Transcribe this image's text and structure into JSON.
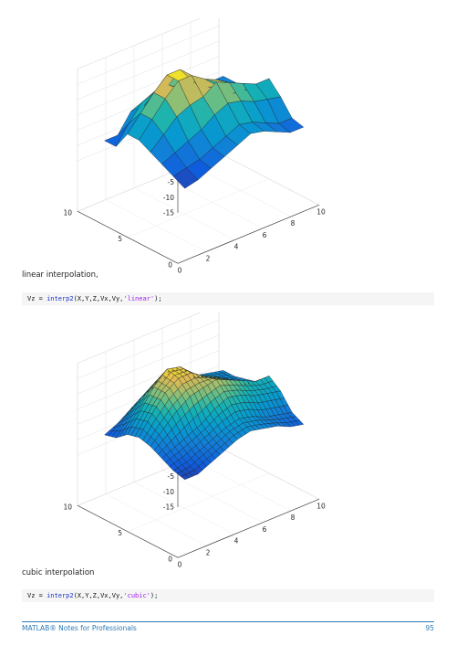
{
  "captions": {
    "linear": "linear interpolation,",
    "cubic": "cubic interpolation"
  },
  "code": {
    "linear": {
      "lhs": "Vz = ",
      "fn": "interp2",
      "args": "(X,Y,Z,Vx,Vy,",
      "str": "'linear'",
      "end": ");"
    },
    "cubic": {
      "lhs": "Vz = ",
      "fn": "interp2",
      "args": "(X,Y,Z,Vx,Vy,",
      "str": "'cubic'",
      "end": ");"
    }
  },
  "footer": {
    "title": "MATLAB® Notes for Professionals",
    "page": "95"
  },
  "chart_data": [
    {
      "type": "surface",
      "zlim": [
        -15,
        15
      ],
      "z_ticks": [
        "15",
        "10",
        "5",
        "0",
        "-5",
        "-10",
        "-15"
      ],
      "x_ticks": [
        "0",
        "2",
        "4",
        "6",
        "8",
        "10"
      ],
      "y_ticks": [
        "0",
        "5",
        "10"
      ],
      "grid": true,
      "grid_z": [
        [
          -9,
          -9,
          -3,
          -3,
          0,
          0,
          -2,
          -2,
          -4,
          -4
        ],
        [
          -9,
          -3,
          2,
          4,
          4,
          1,
          1,
          -2,
          -4,
          -4
        ],
        [
          -3,
          2,
          7,
          11,
          11,
          5,
          4,
          0,
          -4,
          -4
        ],
        [
          -3,
          2,
          7,
          11,
          11,
          8,
          6,
          3,
          -1,
          -1
        ],
        [
          -5,
          -1,
          3,
          5,
          6,
          9,
          7,
          5,
          3,
          3
        ],
        [
          -7,
          -5,
          -3,
          -1,
          2,
          4,
          3,
          1,
          0,
          -1
        ],
        [
          -9,
          -8,
          -7,
          -5,
          -3,
          -1,
          -2,
          -4,
          -6,
          -6
        ],
        [
          -11,
          -10,
          -8,
          -6,
          -4,
          -2,
          -3,
          -5,
          -7,
          -7
        ]
      ]
    },
    {
      "type": "surface",
      "zlim": [
        -15,
        15
      ],
      "z_ticks": [
        "15",
        "10",
        "5",
        "0",
        "-5",
        "-10",
        "-15"
      ],
      "x_ticks": [
        "0",
        "2",
        "4",
        "6",
        "8",
        "10"
      ],
      "y_ticks": [
        "0",
        "5",
        "10"
      ],
      "grid": true,
      "grid_z": [
        [
          -9,
          -7,
          -4,
          -2,
          0,
          0,
          -1,
          -2,
          -3,
          -4
        ],
        [
          -8,
          -3,
          2,
          5,
          5,
          2,
          1,
          -1,
          -3,
          -4
        ],
        [
          -5,
          1,
          7,
          11,
          10,
          5,
          3,
          0,
          -3,
          -3
        ],
        [
          -4,
          2,
          7,
          10,
          10,
          7,
          5,
          2,
          -1,
          -2
        ],
        [
          -5,
          -1,
          3,
          6,
          7,
          8,
          6,
          4,
          2,
          2
        ],
        [
          -7,
          -5,
          -3,
          -1,
          2,
          4,
          3,
          1,
          0,
          -1
        ],
        [
          -9,
          -8,
          -6,
          -4,
          -2,
          -1,
          -2,
          -4,
          -5,
          -6
        ],
        [
          -10,
          -10,
          -8,
          -6,
          -4,
          -3,
          -4,
          -5,
          -7,
          -8
        ]
      ]
    }
  ]
}
